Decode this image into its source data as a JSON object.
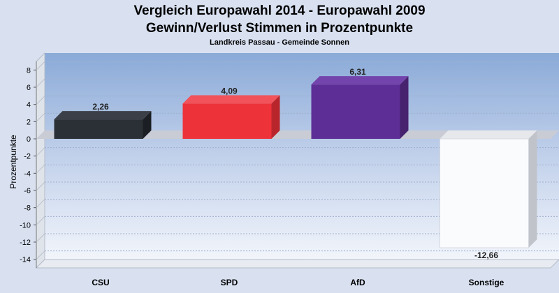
{
  "chart_data": {
    "type": "bar",
    "title_line1": "Vergleich Europawahl 2014 - Europawahl 2009",
    "title_line2": "Gewinn/Verlust Stimmen in Prozentpunkte",
    "subtitle": "Landkreis Passau - Gemeinde Sonnen",
    "xlabel": "",
    "ylabel": "Prozentpunkte",
    "categories": [
      "CSU",
      "SPD",
      "AfD",
      "Sonstige"
    ],
    "values": [
      2.26,
      4.09,
      6.31,
      -12.66
    ],
    "value_labels": [
      "2,26",
      "4,09",
      "6,31",
      "-12,66"
    ],
    "colors": [
      "#2b3036",
      "#ee3239",
      "#5d2e96",
      "#fafbfd"
    ],
    "ylim": [
      -15,
      9
    ],
    "yticks": [
      8,
      6,
      4,
      2,
      0,
      -2,
      -4,
      -6,
      -8,
      -10,
      -12,
      -14
    ],
    "grid": true,
    "legend": "none"
  }
}
